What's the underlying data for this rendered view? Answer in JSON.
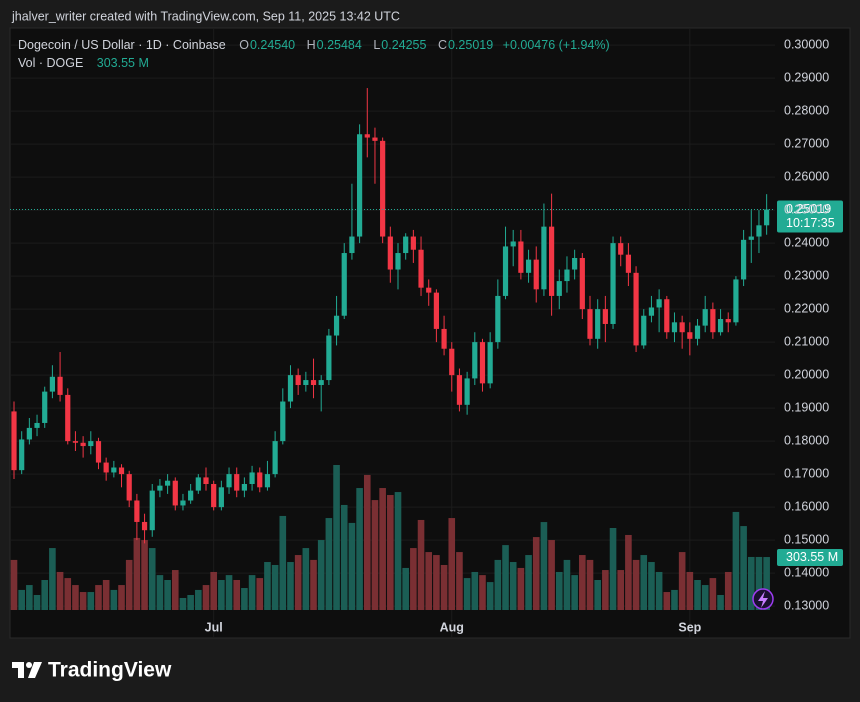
{
  "credit": "jhalver_writer created with TradingView.com, Sep 11, 2025 13:42 UTC",
  "footer": {
    "brand": "TradingView"
  },
  "chart_data": {
    "type": "candlestick",
    "title": "Dogecoin / US Dollar · 1D · Coinbase",
    "ohlc_header": [
      {
        "key": "O",
        "value": "0.24540"
      },
      {
        "key": "H",
        "value": "0.25484"
      },
      {
        "key": "L",
        "value": "0.24255"
      },
      {
        "key": "C",
        "value": "0.25019"
      }
    ],
    "change": "+0.00476 (+1.94%)",
    "volume_title": "Vol · DOGE",
    "volume_label": "303.55 M",
    "countdown": "10:17:35",
    "up_color": "#22ab94",
    "down_color": "#f23645",
    "volume_up_color": "#1b5e55",
    "volume_down_color": "#7a2f33",
    "grid": true,
    "categories": [
      null,
      null,
      null,
      null,
      null,
      null,
      null,
      null,
      null,
      null,
      null,
      null,
      null,
      null,
      null,
      null,
      null,
      null,
      null,
      null,
      null,
      null,
      null,
      null,
      null,
      null,
      "Jul",
      null,
      null,
      null,
      null,
      null,
      null,
      null,
      null,
      null,
      null,
      null,
      null,
      null,
      null,
      null,
      null,
      null,
      null,
      null,
      null,
      null,
      null,
      null,
      null,
      null,
      null,
      null,
      null,
      null,
      null,
      "Aug",
      null,
      null,
      null,
      null,
      null,
      null,
      null,
      null,
      null,
      null,
      null,
      null,
      null,
      null,
      null,
      null,
      null,
      null,
      null,
      null,
      null,
      null,
      null,
      null,
      null,
      null,
      null,
      null,
      null,
      null,
      "Sep",
      null,
      null,
      null,
      null,
      null,
      null,
      null,
      null,
      null,
      null
    ],
    "open": [
      0.189,
      0.1712,
      0.1805,
      0.184,
      0.1855,
      0.195,
      0.1995,
      0.194,
      0.18,
      0.1795,
      0.1785,
      0.18,
      0.1735,
      0.1705,
      0.172,
      0.17,
      0.162,
      0.1555,
      0.153,
      0.165,
      0.1665,
      0.168,
      0.1605,
      0.162,
      0.165,
      0.169,
      0.167,
      0.16,
      0.166,
      0.17,
      0.165,
      0.167,
      0.1705,
      0.166,
      0.17,
      0.18,
      0.192,
      0.2,
      0.197,
      0.1985,
      0.197,
      0.1985,
      0.212,
      0.218,
      0.237,
      0.242,
      0.273,
      0.272,
      0.271,
      0.242,
      0.232,
      0.237,
      0.242,
      0.238,
      0.2265,
      0.225,
      0.214,
      0.208,
      0.2,
      0.191,
      0.199,
      0.21,
      0.1975,
      0.21,
      0.224,
      0.239,
      0.2405,
      0.231,
      0.235,
      0.226,
      0.245,
      0.224,
      0.2285,
      0.232,
      0.2355,
      0.22,
      0.211,
      0.22,
      0.2155,
      0.24,
      0.2365,
      0.231,
      0.209,
      0.218,
      0.2205,
      0.223,
      0.213,
      0.216,
      0.213,
      0.211,
      0.215,
      0.22,
      0.213,
      0.217,
      0.216,
      0.229,
      0.241,
      0.242,
      0.2454
    ],
    "high": [
      0.192,
      0.183,
      0.187,
      0.188,
      0.1965,
      0.203,
      0.207,
      0.196,
      0.183,
      0.1815,
      0.183,
      0.181,
      0.175,
      0.174,
      0.173,
      0.171,
      0.164,
      0.158,
      0.167,
      0.1685,
      0.17,
      0.169,
      0.164,
      0.167,
      0.17,
      0.172,
      0.168,
      0.168,
      0.172,
      0.172,
      0.169,
      0.1725,
      0.172,
      0.174,
      0.183,
      0.196,
      0.203,
      0.202,
      0.201,
      0.205,
      0.2,
      0.214,
      0.224,
      0.24,
      0.258,
      0.276,
      0.287,
      0.275,
      0.272,
      0.245,
      0.24,
      0.243,
      0.244,
      0.242,
      0.229,
      0.226,
      0.218,
      0.21,
      0.202,
      0.201,
      0.213,
      0.211,
      0.213,
      0.229,
      0.245,
      0.244,
      0.244,
      0.238,
      0.239,
      0.252,
      0.255,
      0.232,
      0.236,
      0.238,
      0.237,
      0.224,
      0.223,
      0.224,
      0.242,
      0.242,
      0.24,
      0.233,
      0.22,
      0.224,
      0.226,
      0.224,
      0.219,
      0.218,
      0.216,
      0.217,
      0.224,
      0.222,
      0.22,
      0.219,
      0.23,
      0.244,
      0.25,
      0.25,
      0.25484
    ],
    "low": [
      0.1685,
      0.17,
      0.179,
      0.1815,
      0.184,
      0.193,
      0.192,
      0.179,
      0.177,
      0.175,
      0.176,
      0.1715,
      0.168,
      0.169,
      0.166,
      0.16,
      0.15,
      0.149,
      0.151,
      0.163,
      0.164,
      0.159,
      0.159,
      0.161,
      0.164,
      0.165,
      0.159,
      0.159,
      0.164,
      0.163,
      0.163,
      0.165,
      0.1645,
      0.165,
      0.169,
      0.179,
      0.19,
      0.194,
      0.195,
      0.193,
      0.189,
      0.197,
      0.209,
      0.217,
      0.235,
      0.24,
      0.266,
      0.258,
      0.24,
      0.228,
      0.226,
      0.235,
      0.234,
      0.224,
      0.221,
      0.21,
      0.206,
      0.195,
      0.189,
      0.188,
      0.197,
      0.195,
      0.196,
      0.208,
      0.223,
      0.233,
      0.229,
      0.228,
      0.222,
      0.224,
      0.218,
      0.22,
      0.225,
      0.229,
      0.217,
      0.209,
      0.208,
      0.21,
      0.214,
      0.233,
      0.227,
      0.207,
      0.208,
      0.216,
      0.213,
      0.211,
      0.21,
      0.208,
      0.206,
      0.209,
      0.213,
      0.211,
      0.212,
      0.213,
      0.215,
      0.227,
      0.234,
      0.237,
      0.24255
    ],
    "close": [
      0.1712,
      0.1805,
      0.184,
      0.1855,
      0.195,
      0.1995,
      0.194,
      0.18,
      0.1795,
      0.1785,
      0.18,
      0.1735,
      0.1705,
      0.172,
      0.17,
      0.162,
      0.1555,
      0.153,
      0.165,
      0.1665,
      0.168,
      0.1605,
      0.162,
      0.165,
      0.169,
      0.167,
      0.16,
      0.166,
      0.17,
      0.165,
      0.167,
      0.1705,
      0.166,
      0.17,
      0.18,
      0.192,
      0.2,
      0.197,
      0.1985,
      0.197,
      0.1985,
      0.212,
      0.218,
      0.237,
      0.242,
      0.273,
      0.272,
      0.271,
      0.242,
      0.232,
      0.237,
      0.242,
      0.238,
      0.2265,
      0.225,
      0.214,
      0.208,
      0.2,
      0.191,
      0.199,
      0.21,
      0.1975,
      0.21,
      0.224,
      0.239,
      0.2405,
      0.231,
      0.235,
      0.226,
      0.245,
      0.224,
      0.2285,
      0.232,
      0.2355,
      0.22,
      0.211,
      0.22,
      0.2155,
      0.24,
      0.2365,
      0.231,
      0.209,
      0.218,
      0.2205,
      0.223,
      0.213,
      0.216,
      0.213,
      0.211,
      0.215,
      0.22,
      0.213,
      0.217,
      0.216,
      0.229,
      0.241,
      0.242,
      0.2454,
      0.25019
    ],
    "volume": [
      287,
      115,
      143,
      86,
      172,
      355,
      218,
      183,
      143,
      103,
      103,
      143,
      172,
      115,
      143,
      287,
      413,
      401,
      355,
      200,
      172,
      229,
      69,
      86,
      115,
      143,
      218,
      172,
      200,
      172,
      126,
      200,
      183,
      275,
      258,
      539,
      275,
      315,
      355,
      287,
      401,
      527,
      831,
      602,
      499,
      699,
      774,
      630,
      699,
      659,
      676,
      241,
      355,
      516,
      332,
      315,
      258,
      527,
      332,
      183,
      218,
      200,
      160,
      287,
      372,
      275,
      241,
      315,
      418,
      504,
      401,
      218,
      287,
      200,
      315,
      287,
      172,
      229,
      470,
      229,
      430,
      287,
      315,
      275,
      218,
      103,
      115,
      332,
      218,
      172,
      143,
      183,
      86,
      218,
      562,
      481,
      304,
      304,
      303.55
    ],
    "ylim": [
      0.1273,
      0.3052
    ],
    "yticks": [
      {
        "value": 0.13,
        "label": "0.13000"
      },
      {
        "value": 0.14,
        "label": "0.14000"
      },
      {
        "value": 0.15,
        "label": "0.15000"
      },
      {
        "value": 0.16,
        "label": "0.16000"
      },
      {
        "value": 0.17,
        "label": "0.17000"
      },
      {
        "value": 0.18,
        "label": "0.18000"
      },
      {
        "value": 0.19,
        "label": "0.19000"
      },
      {
        "value": 0.2,
        "label": "0.20000"
      },
      {
        "value": 0.21,
        "label": "0.21000"
      },
      {
        "value": 0.22,
        "label": "0.22000"
      },
      {
        "value": 0.23,
        "label": "0.23000"
      },
      {
        "value": 0.24,
        "label": "0.24000"
      },
      {
        "value": 0.25,
        "label": "0.25000"
      },
      {
        "value": 0.26,
        "label": "0.26000"
      },
      {
        "value": 0.27,
        "label": "0.27000"
      },
      {
        "value": 0.28,
        "label": "0.28000"
      },
      {
        "value": 0.29,
        "label": "0.29000"
      },
      {
        "value": 0.3,
        "label": "0.30000"
      }
    ]
  }
}
